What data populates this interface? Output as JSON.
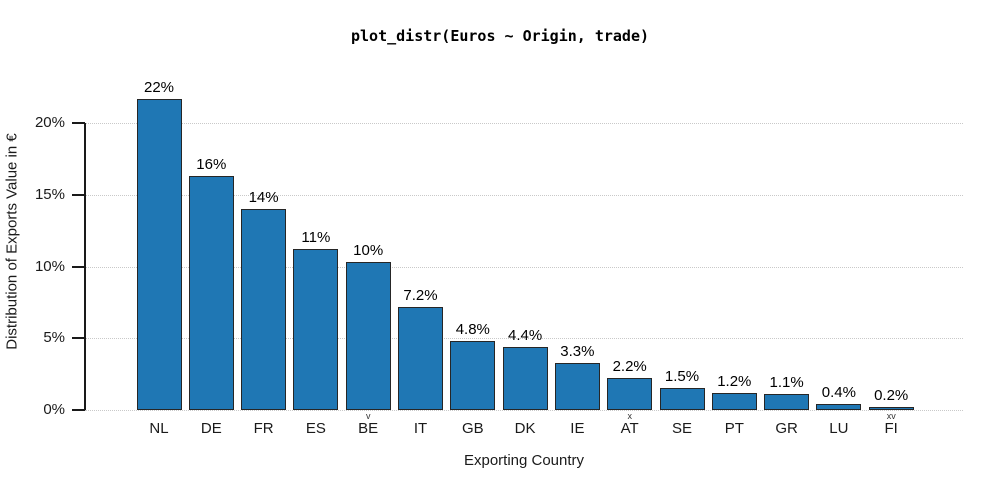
{
  "chart_data": {
    "type": "bar",
    "title": "plot_distr(Euros ~ Origin, trade)",
    "xlabel": "Exporting Country",
    "ylabel": "Distribution of Exports Value in €",
    "categories": [
      "NL",
      "DE",
      "FR",
      "ES",
      "BE",
      "IT",
      "GB",
      "DK",
      "IE",
      "AT",
      "SE",
      "PT",
      "GR",
      "LU",
      "FI"
    ],
    "values": [
      21.7,
      16.3,
      14.0,
      11.2,
      10.3,
      7.2,
      4.8,
      4.4,
      3.3,
      2.2,
      1.5,
      1.2,
      1.1,
      0.4,
      0.2
    ],
    "bar_labels": [
      "22%",
      "16%",
      "14%",
      "11%",
      "10%",
      "7.2%",
      "4.8%",
      "4.4%",
      "3.3%",
      "2.2%",
      "1.5%",
      "1.2%",
      "1.1%",
      "0.4%",
      "0.2%"
    ],
    "roman_tick_marks": [
      "",
      "",
      "",
      "",
      "v",
      "",
      "",
      "",
      "",
      "x",
      "",
      "",
      "",
      "",
      "xv"
    ],
    "y_ticks": [
      {
        "value": 0,
        "label": "0%"
      },
      {
        "value": 5,
        "label": "5%"
      },
      {
        "value": 10,
        "label": "10%"
      },
      {
        "value": 15,
        "label": "15%"
      },
      {
        "value": 20,
        "label": "20%"
      }
    ],
    "ylim": [
      0,
      23
    ],
    "grid": "horizontal-dotted",
    "legend": "none",
    "colors": {
      "bar_fill": "#1f77b4",
      "bar_edge": "#262626",
      "gridline": "#c9c9c9",
      "text": "#000000"
    }
  }
}
